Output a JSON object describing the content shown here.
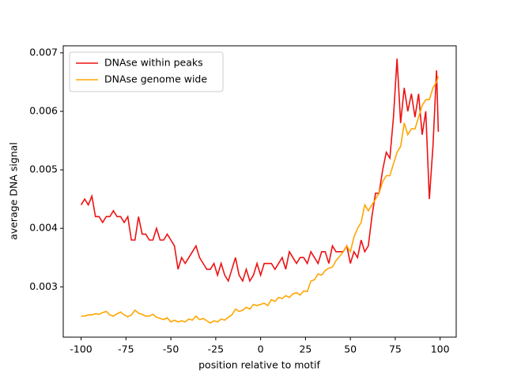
{
  "chart_data": {
    "type": "line",
    "x_label": "position relative to motif",
    "y_label": "average DNA signal",
    "x": [
      -100,
      -98,
      -96,
      -94,
      -92,
      -90,
      -88,
      -86,
      -84,
      -82,
      -80,
      -78,
      -76,
      -74,
      -72,
      -70,
      -68,
      -66,
      -64,
      -62,
      -60,
      -58,
      -56,
      -54,
      -52,
      -50,
      -48,
      -46,
      -44,
      -42,
      -40,
      -38,
      -36,
      -34,
      -32,
      -30,
      -28,
      -26,
      -24,
      -22,
      -20,
      -18,
      -16,
      -14,
      -12,
      -10,
      -8,
      -6,
      -4,
      -2,
      0,
      2,
      4,
      6,
      8,
      10,
      12,
      14,
      16,
      18,
      20,
      22,
      24,
      26,
      28,
      30,
      32,
      34,
      36,
      38,
      40,
      42,
      44,
      46,
      48,
      50,
      52,
      54,
      56,
      58,
      60,
      62,
      64,
      66,
      68,
      70,
      72,
      74,
      76,
      78,
      80,
      82,
      84,
      86,
      88,
      90,
      92,
      94,
      96,
      98,
      99
    ],
    "series": [
      {
        "name": "DNAse within peaks",
        "color": "#ee1111",
        "values": [
          0.0044,
          0.0045,
          0.0044,
          0.00455,
          0.0042,
          0.0042,
          0.0041,
          0.0042,
          0.0042,
          0.0043,
          0.0042,
          0.0042,
          0.0041,
          0.0042,
          0.0038,
          0.0038,
          0.0042,
          0.0039,
          0.0039,
          0.0038,
          0.0038,
          0.004,
          0.0038,
          0.0038,
          0.0039,
          0.0038,
          0.0037,
          0.0033,
          0.0035,
          0.0034,
          0.0035,
          0.0036,
          0.0037,
          0.0035,
          0.0034,
          0.0033,
          0.0033,
          0.0034,
          0.0032,
          0.0034,
          0.0032,
          0.0031,
          0.0033,
          0.0035,
          0.0032,
          0.0031,
          0.0033,
          0.0031,
          0.0032,
          0.0034,
          0.0032,
          0.0034,
          0.0034,
          0.0034,
          0.0033,
          0.0034,
          0.0035,
          0.0033,
          0.0036,
          0.0035,
          0.0034,
          0.0035,
          0.0035,
          0.0034,
          0.0036,
          0.0035,
          0.0034,
          0.0036,
          0.0036,
          0.0034,
          0.0037,
          0.0036,
          0.0036,
          0.0036,
          0.0037,
          0.0034,
          0.0036,
          0.0035,
          0.0038,
          0.0036,
          0.0037,
          0.0042,
          0.0046,
          0.0046,
          0.005,
          0.0053,
          0.0052,
          0.0059,
          0.0069,
          0.0058,
          0.0064,
          0.006,
          0.0063,
          0.0059,
          0.0063,
          0.0056,
          0.006,
          0.0045,
          0.0054,
          0.0067,
          0.00565
        ]
      },
      {
        "name": "DNAse genome wide",
        "color": "#ffa500",
        "values": [
          0.0025,
          0.0025,
          0.00252,
          0.00252,
          0.00254,
          0.00253,
          0.00256,
          0.00258,
          0.00252,
          0.0025,
          0.00254,
          0.00257,
          0.00252,
          0.00249,
          0.00252,
          0.0026,
          0.00255,
          0.00253,
          0.0025,
          0.0025,
          0.00253,
          0.00248,
          0.00246,
          0.00244,
          0.00247,
          0.0024,
          0.00243,
          0.0024,
          0.00242,
          0.0024,
          0.00245,
          0.00243,
          0.0025,
          0.00244,
          0.00246,
          0.00242,
          0.00238,
          0.00242,
          0.0024,
          0.00245,
          0.00243,
          0.00248,
          0.00252,
          0.00262,
          0.00258,
          0.0026,
          0.00265,
          0.00262,
          0.0027,
          0.00268,
          0.0027,
          0.00272,
          0.00268,
          0.00278,
          0.00275,
          0.00282,
          0.0028,
          0.00285,
          0.00282,
          0.00288,
          0.0029,
          0.00286,
          0.00293,
          0.00292,
          0.0031,
          0.00312,
          0.00322,
          0.0032,
          0.00328,
          0.00332,
          0.00334,
          0.00345,
          0.00352,
          0.0036,
          0.0037,
          0.0036,
          0.00385,
          0.004,
          0.0041,
          0.0044,
          0.0043,
          0.0044,
          0.0045,
          0.0046,
          0.0048,
          0.0049,
          0.0049,
          0.0051,
          0.0053,
          0.0054,
          0.0058,
          0.0056,
          0.0057,
          0.0057,
          0.0059,
          0.0061,
          0.0062,
          0.0062,
          0.0064,
          0.0065,
          0.0066
        ]
      }
    ],
    "xlim": [
      -109.95,
      108.95
    ],
    "xticks": [
      -100,
      -75,
      -50,
      -25,
      0,
      25,
      50,
      75,
      100
    ],
    "ylim": [
      0.00214,
      0.00712
    ],
    "yticks": [
      0.003,
      0.004,
      0.005,
      0.006,
      0.007
    ],
    "legend": "upper left"
  }
}
